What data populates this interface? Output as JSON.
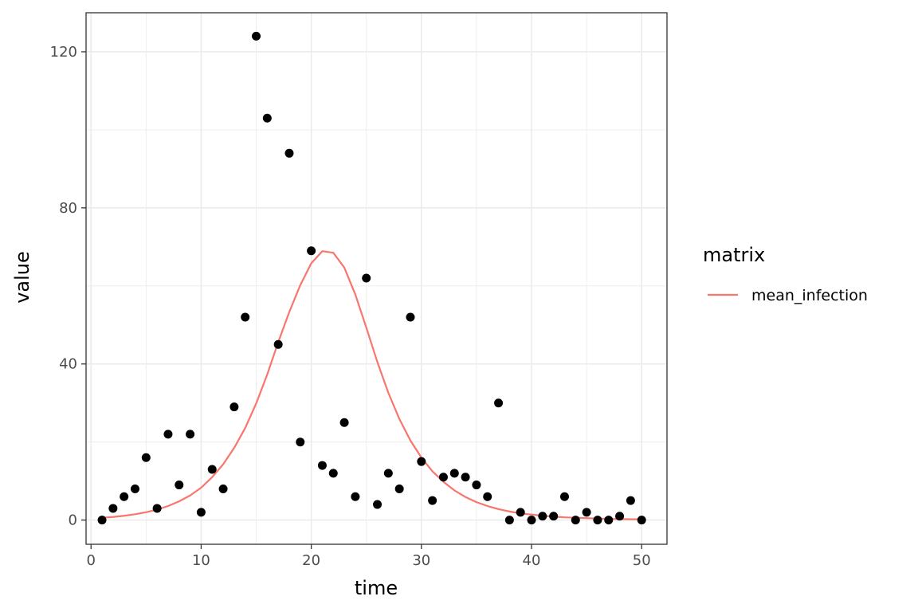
{
  "chart_data": {
    "type": "scatter",
    "title": "",
    "xlabel": "time",
    "ylabel": "value",
    "xlim": [
      -0.45,
      52.3
    ],
    "ylim": [
      -6.2,
      130.0
    ],
    "x_ticks": [
      0,
      10,
      20,
      30,
      40,
      50
    ],
    "x_tick_labels": [
      "0",
      "10",
      "20",
      "30",
      "40",
      "50"
    ],
    "y_ticks": [
      0,
      40,
      80,
      120
    ],
    "y_tick_labels": [
      "0",
      "40",
      "80",
      "120"
    ],
    "grid": true,
    "legend_title": "matrix",
    "legend_position": "right",
    "points": {
      "color": "#000000",
      "x": [
        1,
        2,
        3,
        4,
        5,
        6,
        7,
        8,
        9,
        10,
        11,
        12,
        13,
        14,
        15,
        16,
        17,
        18,
        19,
        20,
        21,
        22,
        23,
        24,
        25,
        26,
        27,
        28,
        29,
        30,
        31,
        32,
        33,
        34,
        35,
        36,
        37,
        38,
        39,
        40,
        41,
        42,
        43,
        44,
        45,
        46,
        47,
        48,
        49,
        50
      ],
      "y": [
        0,
        3,
        6,
        8,
        16,
        3,
        22,
        9,
        22,
        2,
        13,
        8,
        29,
        52,
        124,
        103,
        45,
        94,
        20,
        69,
        14,
        12,
        25,
        6,
        62,
        4,
        12,
        8,
        52,
        15,
        5,
        11,
        12,
        11,
        9,
        6,
        30,
        0,
        2,
        0,
        1,
        1,
        6,
        0,
        2,
        0,
        0,
        1,
        5,
        0
      ]
    },
    "series": [
      {
        "name": "mean_infection",
        "color": "#F8766D",
        "x": [
          1,
          2,
          3,
          4,
          5,
          6,
          7,
          8,
          9,
          10,
          11,
          12,
          13,
          14,
          15,
          16,
          17,
          18,
          19,
          20,
          21,
          22,
          23,
          24,
          25,
          26,
          27,
          28,
          29,
          30,
          31,
          32,
          33,
          34,
          35,
          36,
          37,
          38,
          39,
          40,
          41,
          42,
          43,
          44,
          45,
          46,
          47,
          48,
          49,
          50
        ],
        "y": [
          0.6,
          0.8,
          1.1,
          1.5,
          2.0,
          2.7,
          3.6,
          4.8,
          6.3,
          8.3,
          11.0,
          14.3,
          18.5,
          23.6,
          29.9,
          37.3,
          45.6,
          53.3,
          60.2,
          65.8,
          68.9,
          68.5,
          64.7,
          57.8,
          49.3,
          40.5,
          32.6,
          25.9,
          20.4,
          16.0,
          12.5,
          9.8,
          7.6,
          5.9,
          4.6,
          3.6,
          2.8,
          2.2,
          1.7,
          1.4,
          1.1,
          0.9,
          0.7,
          0.6,
          0.5,
          0.4,
          0.3,
          0.25,
          0.2,
          0.2
        ]
      }
    ]
  }
}
